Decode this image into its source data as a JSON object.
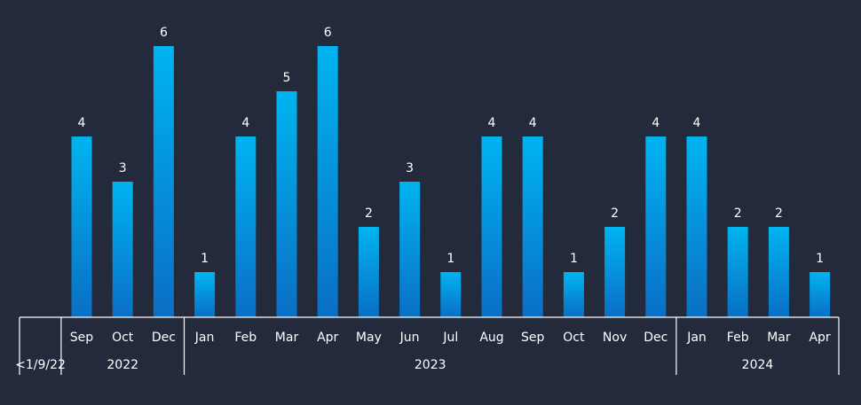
{
  "chart_data": {
    "type": "bar",
    "categories": [
      "Sep",
      "Oct",
      "Dec",
      "Jan",
      "Feb",
      "Mar",
      "Apr",
      "May",
      "Jun",
      "Jul",
      "Aug",
      "Sep",
      "Oct",
      "Nov",
      "Dec",
      "Jan",
      "Feb",
      "Mar",
      "Apr"
    ],
    "values": [
      4,
      3,
      6,
      1,
      4,
      5,
      6,
      2,
      3,
      1,
      4,
      4,
      1,
      2,
      4,
      4,
      2,
      2,
      1
    ],
    "groups": [
      {
        "label": "<1/9/22",
        "count": 0
      },
      {
        "label": "2022",
        "count": 3
      },
      {
        "label": "2023",
        "count": 12
      },
      {
        "label": "2024",
        "count": 4
      }
    ],
    "ylim": [
      0,
      6
    ],
    "data_labels": true,
    "grid": false,
    "colors": {
      "background": "#232a3c",
      "bar_top": "#00b4f0",
      "bar_bottom": "#0a6fc4",
      "text": "#ffffff",
      "axis": "#ffffff"
    }
  }
}
